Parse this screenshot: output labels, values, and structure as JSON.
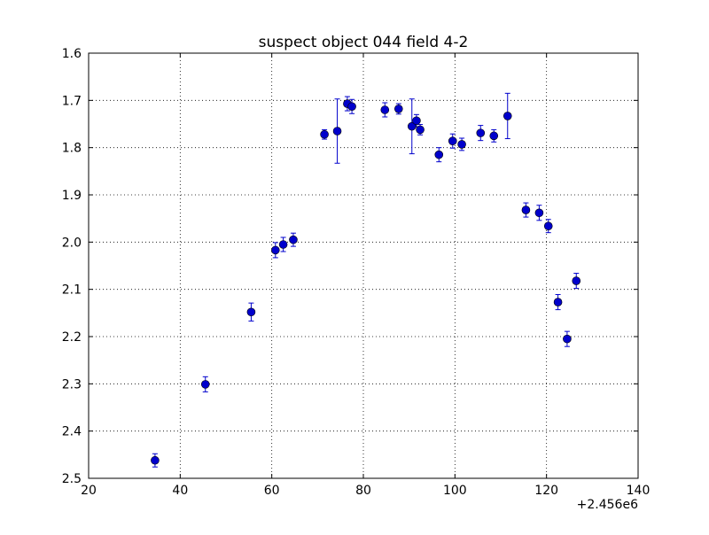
{
  "chart_data": {
    "type": "scatter",
    "title": "suspect object 044 field 4-2",
    "xlabel": "",
    "ylabel": "",
    "x_offset_label": "+2.456e6",
    "xlim": [
      20,
      140
    ],
    "ylim": [
      1.6,
      2.5
    ],
    "y_inverted": true,
    "grid": true,
    "x_ticks": [
      "20",
      "40",
      "60",
      "80",
      "100",
      "120",
      "140"
    ],
    "y_ticks": [
      "1.6",
      "1.7",
      "1.8",
      "1.9",
      "2.0",
      "2.1",
      "2.2",
      "2.3",
      "2.4",
      "2.5"
    ],
    "marker_color": "#0000cc",
    "points": [
      {
        "x": 34.5,
        "y": 2.462,
        "err": 0.014
      },
      {
        "x": 45.5,
        "y": 2.301,
        "err": 0.016
      },
      {
        "x": 55.5,
        "y": 2.148,
        "err": 0.019
      },
      {
        "x": 60.8,
        "y": 2.017,
        "err": 0.016
      },
      {
        "x": 62.5,
        "y": 2.005,
        "err": 0.015
      },
      {
        "x": 64.7,
        "y": 1.995,
        "err": 0.014
      },
      {
        "x": 71.5,
        "y": 1.772,
        "err": 0.01
      },
      {
        "x": 74.3,
        "y": 1.765,
        "err": 0.068
      },
      {
        "x": 76.5,
        "y": 1.707,
        "err": 0.015
      },
      {
        "x": 77.5,
        "y": 1.713,
        "err": 0.015
      },
      {
        "x": 84.7,
        "y": 1.72,
        "err": 0.015
      },
      {
        "x": 87.7,
        "y": 1.718,
        "err": 0.011
      },
      {
        "x": 90.6,
        "y": 1.755,
        "err": 0.058
      },
      {
        "x": 91.6,
        "y": 1.743,
        "err": 0.013
      },
      {
        "x": 92.4,
        "y": 1.762,
        "err": 0.011
      },
      {
        "x": 96.5,
        "y": 1.815,
        "err": 0.015
      },
      {
        "x": 99.5,
        "y": 1.786,
        "err": 0.015
      },
      {
        "x": 101.5,
        "y": 1.793,
        "err": 0.013
      },
      {
        "x": 105.6,
        "y": 1.769,
        "err": 0.016
      },
      {
        "x": 108.5,
        "y": 1.775,
        "err": 0.013
      },
      {
        "x": 111.5,
        "y": 1.733,
        "err": 0.048
      },
      {
        "x": 115.5,
        "y": 1.932,
        "err": 0.015
      },
      {
        "x": 118.4,
        "y": 1.938,
        "err": 0.016
      },
      {
        "x": 120.4,
        "y": 1.966,
        "err": 0.014
      },
      {
        "x": 122.5,
        "y": 2.127,
        "err": 0.016
      },
      {
        "x": 124.5,
        "y": 2.205,
        "err": 0.016
      },
      {
        "x": 126.5,
        "y": 2.082,
        "err": 0.016
      }
    ]
  }
}
